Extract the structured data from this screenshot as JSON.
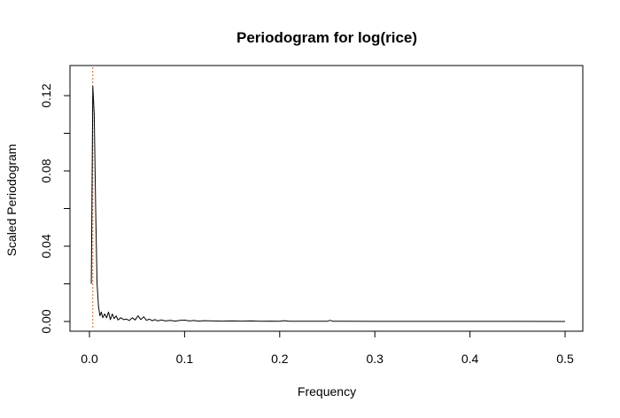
{
  "chart_data": {
    "type": "line",
    "title": "Periodogram for log(rice)",
    "xlabel": "Frequency",
    "ylabel": "Scaled Periodogram",
    "xlim": [
      0,
      0.5
    ],
    "ylim": [
      0,
      0.13
    ],
    "x_ticks": [
      0.0,
      0.1,
      0.2,
      0.3,
      0.4,
      0.5
    ],
    "x_tick_labels": [
      "0.0",
      "0.1",
      "0.2",
      "0.3",
      "0.4",
      "0.5"
    ],
    "y_ticks": [
      0.0,
      0.04,
      0.08,
      0.12
    ],
    "y_tick_labels": [
      "0.00",
      "0.04",
      "0.08",
      "0.12"
    ],
    "y_minor_ticks": [
      0.02,
      0.06,
      0.1
    ],
    "grid": false,
    "series": [
      {
        "color": "#000000",
        "x": [
          0.002,
          0.0035,
          0.005,
          0.0065,
          0.008,
          0.0095,
          0.011,
          0.0125,
          0.014,
          0.016,
          0.018,
          0.02,
          0.022,
          0.024,
          0.026,
          0.028,
          0.03,
          0.033,
          0.036,
          0.039,
          0.042,
          0.045,
          0.048,
          0.051,
          0.054,
          0.057,
          0.06,
          0.063,
          0.066,
          0.069,
          0.072,
          0.075,
          0.08,
          0.085,
          0.09,
          0.095,
          0.1,
          0.105,
          0.11,
          0.115,
          0.12,
          0.13,
          0.14,
          0.15,
          0.16,
          0.17,
          0.18,
          0.19,
          0.2,
          0.205,
          0.21,
          0.22,
          0.23,
          0.24,
          0.25,
          0.253,
          0.256,
          0.27,
          0.3,
          0.35,
          0.4,
          0.45,
          0.5
        ],
        "y": [
          0.02,
          0.125,
          0.11,
          0.06,
          0.02,
          0.008,
          0.003,
          0.005,
          0.002,
          0.004,
          0.002,
          0.005,
          0.001,
          0.004,
          0.0015,
          0.003,
          0.0008,
          0.002,
          0.001,
          0.0012,
          0.0005,
          0.002,
          0.0008,
          0.003,
          0.001,
          0.0025,
          0.0006,
          0.0012,
          0.0004,
          0.001,
          0.0003,
          0.0008,
          0.0003,
          0.0006,
          0.0002,
          0.0006,
          0.0007,
          0.0003,
          0.0005,
          0.0002,
          0.0004,
          0.0003,
          0.0002,
          0.0003,
          0.0002,
          0.0003,
          0.0001,
          0.0002,
          0.0001,
          0.0004,
          0.0001,
          0.0001,
          0.0001,
          0.0001,
          0.0001,
          0.0006,
          0.0001,
          8e-05,
          5e-05,
          4e-05,
          3e-05,
          3e-05,
          2e-05
        ]
      }
    ],
    "reference_lines": [
      {
        "orientation": "vertical",
        "x": 0.0035,
        "color": "#d2691e",
        "style": "dotted"
      }
    ]
  }
}
